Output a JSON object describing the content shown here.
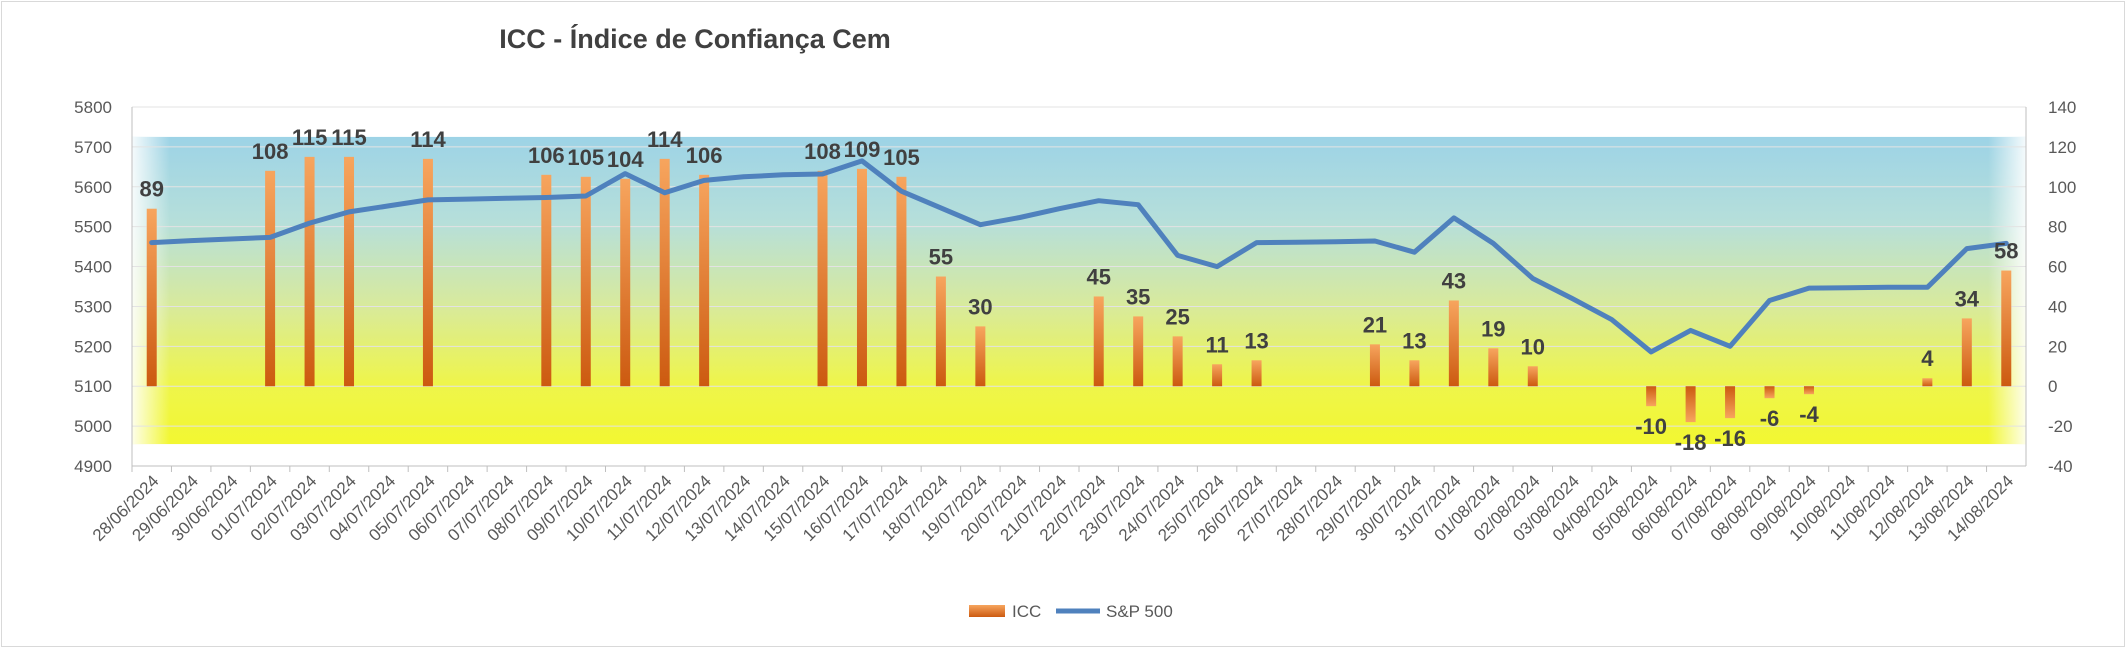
{
  "chart_data": {
    "type": "bar+line",
    "title": "ICC - Índice de Confiança Cem",
    "categories": [
      "28/06/2024",
      "29/06/2024",
      "30/06/2024",
      "01/07/2024",
      "02/07/2024",
      "03/07/2024",
      "04/07/2024",
      "05/07/2024",
      "06/07/2024",
      "07/07/2024",
      "08/07/2024",
      "09/07/2024",
      "10/07/2024",
      "11/07/2024",
      "12/07/2024",
      "13/07/2024",
      "14/07/2024",
      "15/07/2024",
      "16/07/2024",
      "17/07/2024",
      "18/07/2024",
      "19/07/2024",
      "20/07/2024",
      "21/07/2024",
      "22/07/2024",
      "23/07/2024",
      "24/07/2024",
      "25/07/2024",
      "26/07/2024",
      "27/07/2024",
      "28/07/2024",
      "29/07/2024",
      "30/07/2024",
      "31/07/2024",
      "01/08/2024",
      "02/08/2024",
      "03/08/2024",
      "04/08/2024",
      "05/08/2024",
      "06/08/2024",
      "07/08/2024",
      "08/08/2024",
      "09/08/2024",
      "10/08/2024",
      "11/08/2024",
      "12/08/2024",
      "13/08/2024",
      "14/08/2024"
    ],
    "series": [
      {
        "name": "ICC",
        "type": "bar",
        "axis": "right",
        "color": "#ed7d31",
        "values": [
          89,
          null,
          null,
          108,
          115,
          115,
          null,
          114,
          null,
          null,
          106,
          105,
          104,
          114,
          106,
          null,
          null,
          108,
          109,
          105,
          55,
          30,
          null,
          null,
          45,
          35,
          25,
          11,
          13,
          null,
          null,
          21,
          13,
          43,
          19,
          10,
          null,
          null,
          -10,
          -18,
          -16,
          -6,
          -4,
          null,
          null,
          4,
          34,
          58
        ]
      },
      {
        "name": "S&P 500",
        "type": "line",
        "axis": "left",
        "color": "#4f81bd",
        "values": [
          5460,
          5465,
          5469,
          5473,
          5509,
          5537,
          5552,
          5567,
          5569,
          5571,
          5573,
          5577,
          5633,
          5585,
          5616,
          5625,
          5630,
          5632,
          5665,
          5589,
          5547,
          5505,
          5523,
          5545,
          5565,
          5555,
          5428,
          5400,
          5460,
          5461,
          5462,
          5464,
          5436,
          5522,
          5458,
          5370,
          5320,
          5267,
          5186,
          5240,
          5200,
          5315,
          5346,
          5347,
          5348,
          5348,
          5445,
          5458
        ]
      }
    ],
    "left_axis": {
      "min": 4900,
      "max": 5800,
      "step": 100
    },
    "right_axis": {
      "min": -40,
      "max": 140,
      "step": 20
    },
    "legend": {
      "position": "bottom",
      "items": [
        "ICC",
        "S&P 500"
      ]
    },
    "grid": true
  }
}
